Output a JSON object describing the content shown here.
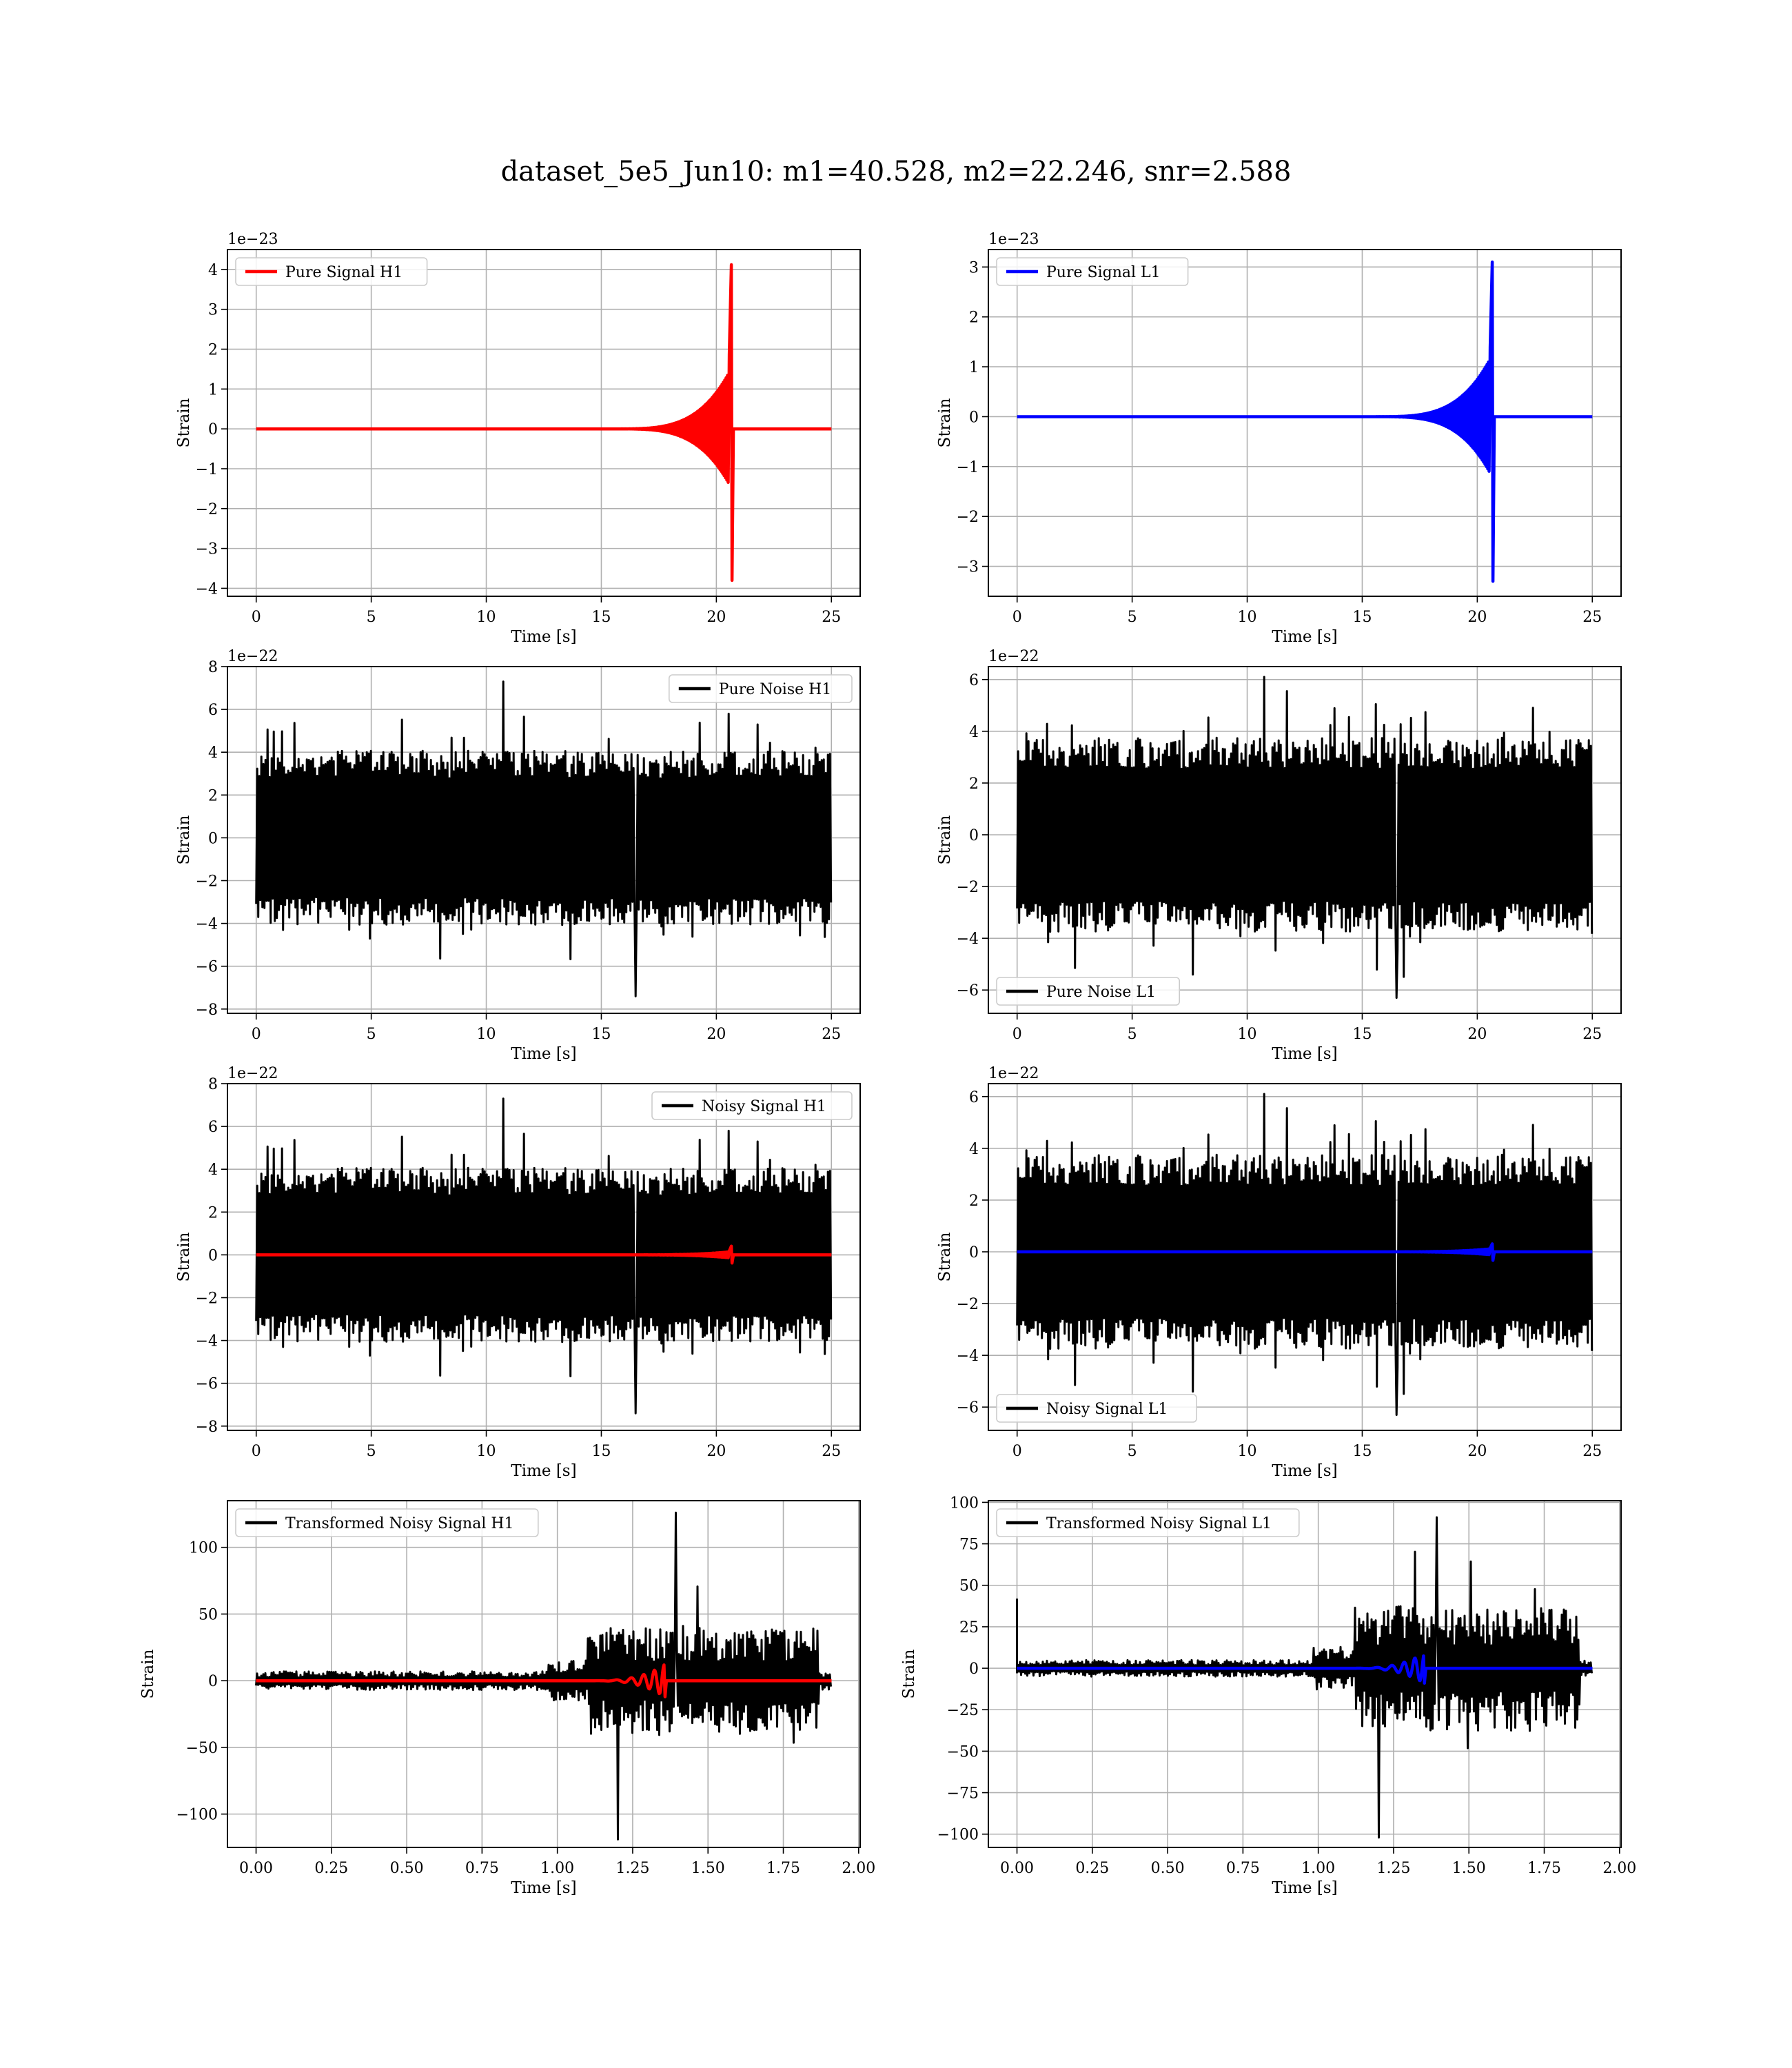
{
  "figure": {
    "title": "dataset_5e5_Jun10: m1=40.528, m2=22.246, snr=2.588"
  },
  "colors": {
    "h1_signal": "#ff0000",
    "l1_signal": "#0000ff",
    "noise": "#000000",
    "grid": "#b0b0b0"
  },
  "chart_data": [
    {
      "id": "pure-signal-h1",
      "type": "line",
      "xlabel": "Time [s]",
      "ylabel": "Strain",
      "offset_text": "1e−23",
      "xlim": [
        -1.25,
        26.25
      ],
      "ylim": [
        -4.2,
        4.5
      ],
      "xticks": [
        0,
        5,
        10,
        15,
        20,
        25
      ],
      "xtick_labels": [
        "0",
        "5",
        "10",
        "15",
        "20",
        "25"
      ],
      "yticks": [
        -4,
        -3,
        -2,
        -1,
        0,
        1,
        2,
        3,
        4
      ],
      "ytick_labels": [
        "−4",
        "−3",
        "−2",
        "−1",
        "0",
        "1",
        "2",
        "3",
        "4"
      ],
      "grid": true,
      "legend": "upper left",
      "series": [
        {
          "name": "Pure Signal H1",
          "color": "#ff0000",
          "kind": "chirp",
          "t_start": 0,
          "t_end": 25,
          "t_merge": 20.65,
          "peak_pos": 4.12,
          "peak_neg": -3.8
        }
      ]
    },
    {
      "id": "pure-signal-l1",
      "type": "line",
      "xlabel": "Time [s]",
      "ylabel": "Strain",
      "offset_text": "1e−23",
      "xlim": [
        -1.25,
        26.25
      ],
      "ylim": [
        -3.6,
        3.35
      ],
      "xticks": [
        0,
        5,
        10,
        15,
        20,
        25
      ],
      "xtick_labels": [
        "0",
        "5",
        "10",
        "15",
        "20",
        "25"
      ],
      "yticks": [
        -3,
        -2,
        -1,
        0,
        1,
        2,
        3
      ],
      "ytick_labels": [
        "−3",
        "−2",
        "−1",
        "0",
        "1",
        "2",
        "3"
      ],
      "grid": true,
      "legend": "upper left",
      "series": [
        {
          "name": "Pure Signal L1",
          "color": "#0000ff",
          "kind": "chirp",
          "t_start": 0,
          "t_end": 25,
          "t_merge": 20.65,
          "peak_pos": 3.1,
          "peak_neg": -3.3
        }
      ]
    },
    {
      "id": "pure-noise-h1",
      "type": "line",
      "xlabel": "Time [s]",
      "ylabel": "Strain",
      "offset_text": "1e−22",
      "xlim": [
        -1.25,
        26.25
      ],
      "ylim": [
        -8.2,
        8.0
      ],
      "xticks": [
        0,
        5,
        10,
        15,
        20,
        25
      ],
      "xtick_labels": [
        "0",
        "5",
        "10",
        "15",
        "20",
        "25"
      ],
      "yticks": [
        -8,
        -6,
        -4,
        -2,
        0,
        2,
        4,
        6,
        8
      ],
      "ytick_labels": [
        "−8",
        "−6",
        "−4",
        "−2",
        "0",
        "2",
        "4",
        "6",
        "8"
      ],
      "grid": true,
      "legend": "upper right",
      "series": [
        {
          "name": "Pure Noise H1",
          "color": "#000000",
          "kind": "noise",
          "t_start": 0,
          "t_end": 25,
          "band": 3.7,
          "max": 7.3,
          "min": -7.4,
          "seed": 11
        }
      ]
    },
    {
      "id": "pure-noise-l1",
      "type": "line",
      "xlabel": "Time [s]",
      "ylabel": "Strain",
      "offset_text": "1e−22",
      "xlim": [
        -1.25,
        26.25
      ],
      "ylim": [
        -6.9,
        6.5
      ],
      "xticks": [
        0,
        5,
        10,
        15,
        20,
        25
      ],
      "xtick_labels": [
        "0",
        "5",
        "10",
        "15",
        "20",
        "25"
      ],
      "yticks": [
        -6,
        -4,
        -2,
        0,
        2,
        4,
        6
      ],
      "ytick_labels": [
        "−6",
        "−4",
        "−2",
        "0",
        "2",
        "4",
        "6"
      ],
      "grid": true,
      "legend": "lower left",
      "series": [
        {
          "name": "Pure Noise L1",
          "color": "#000000",
          "kind": "noise",
          "t_start": 0,
          "t_end": 25,
          "band": 3.4,
          "max": 6.1,
          "min": -6.3,
          "seed": 23
        }
      ]
    },
    {
      "id": "noisy-signal-h1",
      "type": "line",
      "xlabel": "Time [s]",
      "ylabel": "Strain",
      "offset_text": "1e−22",
      "xlim": [
        -1.25,
        26.25
      ],
      "ylim": [
        -8.2,
        8.0
      ],
      "xticks": [
        0,
        5,
        10,
        15,
        20,
        25
      ],
      "xtick_labels": [
        "0",
        "5",
        "10",
        "15",
        "20",
        "25"
      ],
      "yticks": [
        -8,
        -6,
        -4,
        -2,
        0,
        2,
        4,
        6,
        8
      ],
      "ytick_labels": [
        "−8",
        "−6",
        "−4",
        "−2",
        "0",
        "2",
        "4",
        "6",
        "8"
      ],
      "grid": true,
      "legend": "upper right",
      "series": [
        {
          "name": "Noisy Signal H1",
          "color": "#000000",
          "kind": "noise",
          "t_start": 0,
          "t_end": 25,
          "band": 3.7,
          "max": 7.3,
          "min": -7.4,
          "seed": 11
        },
        {
          "name": "",
          "color": "#ff0000",
          "kind": "chirp",
          "t_start": 0,
          "t_end": 25,
          "t_merge": 20.65,
          "peak_pos": 0.41,
          "peak_neg": -0.38
        }
      ]
    },
    {
      "id": "noisy-signal-l1",
      "type": "line",
      "xlabel": "Time [s]",
      "ylabel": "Strain",
      "offset_text": "1e−22",
      "xlim": [
        -1.25,
        26.25
      ],
      "ylim": [
        -6.9,
        6.5
      ],
      "xticks": [
        0,
        5,
        10,
        15,
        20,
        25
      ],
      "xtick_labels": [
        "0",
        "5",
        "10",
        "15",
        "20",
        "25"
      ],
      "yticks": [
        -6,
        -4,
        -2,
        0,
        2,
        4,
        6
      ],
      "ytick_labels": [
        "−6",
        "−4",
        "−2",
        "0",
        "2",
        "4",
        "6"
      ],
      "grid": true,
      "legend": "lower left",
      "series": [
        {
          "name": "Noisy Signal L1",
          "color": "#000000",
          "kind": "noise",
          "t_start": 0,
          "t_end": 25,
          "band": 3.4,
          "max": 6.1,
          "min": -6.3,
          "seed": 23
        },
        {
          "name": "",
          "color": "#0000ff",
          "kind": "chirp",
          "t_start": 0,
          "t_end": 25,
          "t_merge": 20.65,
          "peak_pos": 0.31,
          "peak_neg": -0.33
        }
      ]
    },
    {
      "id": "transformed-noisy-signal-h1",
      "type": "line",
      "xlabel": "Time [s]",
      "ylabel": "Strain",
      "offset_text": "",
      "xlim": [
        -0.095,
        2.005
      ],
      "ylim": [
        -125,
        135
      ],
      "xticks": [
        0,
        0.25,
        0.5,
        0.75,
        1.0,
        1.25,
        1.5,
        1.75,
        2.0
      ],
      "xtick_labels": [
        "0.00",
        "0.25",
        "0.50",
        "0.75",
        "1.00",
        "1.25",
        "1.50",
        "1.75",
        "2.00"
      ],
      "yticks": [
        -100,
        -50,
        0,
        50,
        100
      ],
      "ytick_labels": [
        "−100",
        "−50",
        "0",
        "50",
        "100"
      ],
      "grid": true,
      "legend": "upper left",
      "series": [
        {
          "name": "Transformed Noisy Signal H1",
          "color": "#000000",
          "kind": "burst",
          "t_start": 0,
          "t_end": 1.91,
          "t_on": 1.1,
          "t_off": 1.87,
          "band_pre": 7,
          "band_post": 40,
          "max": 126,
          "min": -119,
          "seed": 37
        },
        {
          "name": "",
          "color": "#ff0000",
          "kind": "osc",
          "t_start": 0,
          "t_end": 1.91,
          "t_osc_start": 1.1,
          "t_peak": 1.355,
          "peak": 12
        }
      ]
    },
    {
      "id": "transformed-noisy-signal-l1",
      "type": "line",
      "xlabel": "Time [s]",
      "ylabel": "Strain",
      "offset_text": "",
      "xlim": [
        -0.095,
        2.005
      ],
      "ylim": [
        -108,
        101
      ],
      "xticks": [
        0,
        0.25,
        0.5,
        0.75,
        1.0,
        1.25,
        1.5,
        1.75,
        2.0
      ],
      "xtick_labels": [
        "0.00",
        "0.25",
        "0.50",
        "0.75",
        "1.00",
        "1.25",
        "1.50",
        "1.75",
        "2.00"
      ],
      "yticks": [
        -100,
        -75,
        -50,
        -25,
        0,
        25,
        50,
        75,
        100
      ],
      "ytick_labels": [
        "−100",
        "−75",
        "−50",
        "−25",
        "0",
        "25",
        "50",
        "75",
        "100"
      ],
      "grid": true,
      "legend": "upper left",
      "series": [
        {
          "name": "Transformed Noisy Signal L1",
          "color": "#000000",
          "kind": "burst",
          "t_start": 0,
          "t_end": 1.91,
          "t_on": 1.12,
          "t_off": 1.87,
          "band_pre": 5,
          "band_post": 38,
          "max": 91,
          "min": -102,
          "spike_start": 42,
          "seed": 53
        },
        {
          "name": "",
          "color": "#0000ff",
          "kind": "osc",
          "t_start": 0,
          "t_end": 1.91,
          "t_osc_start": 1.1,
          "t_peak": 1.35,
          "peak": 9
        }
      ]
    }
  ]
}
